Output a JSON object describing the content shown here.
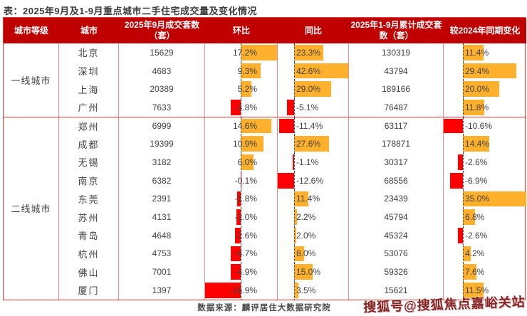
{
  "meta": {
    "title": "表：2025年9月及1-9月重点城市二手住宅成交量及变化情况",
    "source": "数据来源：麟评居住大数据研究院",
    "watermark": "搜狐号@搜狐焦点嘉峪关站"
  },
  "colors": {
    "header_bg": "#c00000",
    "header_text": "#ffffff",
    "positive_bar": "#ffb12e",
    "negative_bar": "#ff0000",
    "inner_border": "#ef8b8b",
    "strong_border": "#e03a3a",
    "body_text": "#3f3f3f"
  },
  "chart_data": {
    "type": "table",
    "title": "2025年9月及1-9月重点城市二手住宅成交量及变化情况",
    "columns": [
      "城市等级",
      "城市",
      "2025年9月成交套数（套）",
      "环比",
      "同比",
      "2025年1-9月累计成交套数（套）",
      "较2024年同期变化"
    ],
    "bar_columns": [
      "环比",
      "同比",
      "较2024年同期变化"
    ],
    "bar_note": "正值为橙色条，负值为红色条，虚线为零轴",
    "groups": [
      {
        "tier": "一线城市",
        "rows": [
          {
            "city": "北京",
            "sep_sales": 15629,
            "mom": 17.2,
            "yoy": 23.3,
            "cum_sales": 130319,
            "vs2024": 11.4
          },
          {
            "city": "深圳",
            "sep_sales": 4683,
            "mom": 9.3,
            "yoy": 42.6,
            "cum_sales": 43794,
            "vs2024": 29.4
          },
          {
            "city": "上海",
            "sep_sales": 20389,
            "mom": 5.2,
            "yoy": 29.0,
            "cum_sales": 189166,
            "vs2024": 20.0
          },
          {
            "city": "广州",
            "sep_sales": 7633,
            "mom": -4.8,
            "yoy": -5.1,
            "cum_sales": 76487,
            "vs2024": 11.8
          }
        ]
      },
      {
        "tier": "二线城市",
        "rows": [
          {
            "city": "郑州",
            "sep_sales": 6999,
            "mom": 14.6,
            "yoy": -11.4,
            "cum_sales": 63117,
            "vs2024": -10.6
          },
          {
            "city": "成都",
            "sep_sales": 19399,
            "mom": 10.9,
            "yoy": 27.6,
            "cum_sales": 178871,
            "vs2024": 14.4
          },
          {
            "city": "无锡",
            "sep_sales": 3182,
            "mom": 6.0,
            "yoy": -1.1,
            "cum_sales": 30317,
            "vs2024": -2.6
          },
          {
            "city": "南京",
            "sep_sales": 6382,
            "mom": -0.1,
            "yoy": -12.6,
            "cum_sales": 68556,
            "vs2024": -6.9
          },
          {
            "city": "东莞",
            "sep_sales": 2391,
            "mom": -1.8,
            "yoy": 11.4,
            "cum_sales": 23439,
            "vs2024": 35.0
          },
          {
            "city": "苏州",
            "sep_sales": 4131,
            "mom": -2.0,
            "yoy": 2.2,
            "cum_sales": 45794,
            "vs2024": 6.8
          },
          {
            "city": "青岛",
            "sep_sales": 4648,
            "mom": -2.6,
            "yoy": 2.0,
            "cum_sales": 45324,
            "vs2024": -2.6
          },
          {
            "city": "杭州",
            "sep_sales": 4753,
            "mom": -4.7,
            "yoy": 8.0,
            "cum_sales": 53076,
            "vs2024": 4.2
          },
          {
            "city": "佛山",
            "sep_sales": 7001,
            "mom": -4.9,
            "yoy": 15.0,
            "cum_sales": 59326,
            "vs2024": 7.6
          },
          {
            "city": "厦门",
            "sep_sales": 1397,
            "mom": -16.9,
            "yoy": 3.5,
            "cum_sales": 15621,
            "vs2024": 11.5
          }
        ]
      }
    ]
  }
}
